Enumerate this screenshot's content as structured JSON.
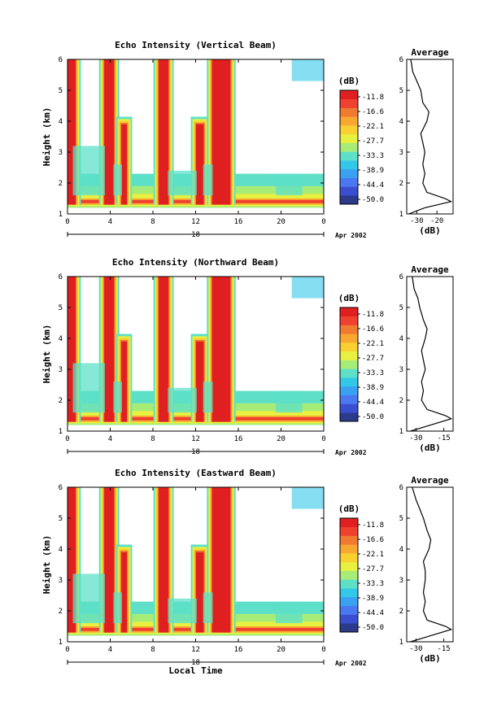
{
  "chart_data": [
    {
      "type": "heatmap",
      "title": "Echo Intensity (Vertical Beam)",
      "ylabel": "Height (km)",
      "xlabel": "",
      "xlim": [
        0,
        24
      ],
      "ylim": [
        1,
        6
      ],
      "x_ticks": [
        "0",
        "4",
        "8",
        "12",
        "16",
        "20",
        "0"
      ],
      "y_ticks": [
        "1",
        "2",
        "3",
        "4",
        "5",
        "6"
      ],
      "day_label": "18",
      "date_label": "Apr 2002",
      "colorbar": {
        "unit": "(dB)",
        "levels": [
          "-11.8",
          "-16.6",
          "-22.1",
          "-27.7",
          "-33.3",
          "-38.9",
          "-44.4",
          "-50.0"
        ],
        "colors": [
          "#2b3a8a",
          "#3a4fd0",
          "#4a78f0",
          "#3aa0f0",
          "#34c8e8",
          "#5ee0c8",
          "#a8ec78",
          "#e8f040",
          "#f8d030",
          "#f8a830",
          "#f07a30",
          "#f04030",
          "#e02020"
        ]
      },
      "echo_bands": [
        {
          "start": 0.0,
          "end": 0.7,
          "top": 6.0
        },
        {
          "start": 3.5,
          "end": 4.3,
          "top": 6.0
        },
        {
          "start": 5.1,
          "end": 5.5,
          "top": 3.9
        },
        {
          "start": 8.6,
          "end": 9.4,
          "top": 6.0
        },
        {
          "start": 12.1,
          "end": 12.7,
          "top": 3.9
        },
        {
          "start": 13.6,
          "end": 15.2,
          "top": 6.0
        }
      ],
      "average": {
        "title": "Average",
        "xlabel": "(dB)",
        "x_ticks": [
          "-30",
          "-20"
        ],
        "xlim": [
          -35,
          -12
        ],
        "height": [
          1.0,
          1.2,
          1.4,
          1.5,
          1.7,
          2.0,
          2.3,
          2.6,
          3.0,
          3.3,
          3.6,
          4.0,
          4.3,
          4.6,
          5.0,
          5.3,
          5.6,
          6.0
        ],
        "values": [
          -34,
          -26,
          -13,
          -16,
          -25,
          -27,
          -26,
          -27,
          -26,
          -27,
          -28,
          -25,
          -24,
          -27,
          -28,
          -30,
          -32,
          -33
        ]
      }
    },
    {
      "type": "heatmap",
      "title": "Echo Intensity (Northward Beam)",
      "ylabel": "Height (km)",
      "xlabel": "",
      "xlim": [
        0,
        24
      ],
      "ylim": [
        1,
        6
      ],
      "x_ticks": [
        "0",
        "4",
        "8",
        "12",
        "16",
        "20",
        "0"
      ],
      "y_ticks": [
        "1",
        "2",
        "3",
        "4",
        "5",
        "6"
      ],
      "day_label": "18",
      "date_label": "Apr 2002",
      "colorbar": {
        "unit": "(dB)",
        "levels": [
          "-11.8",
          "-16.6",
          "-22.1",
          "-27.7",
          "-33.3",
          "-38.9",
          "-44.4",
          "-50.0"
        ],
        "colors": [
          "#2b3a8a",
          "#3a4fd0",
          "#4a78f0",
          "#3aa0f0",
          "#34c8e8",
          "#5ee0c8",
          "#a8ec78",
          "#e8f040",
          "#f8d030",
          "#f8a830",
          "#f07a30",
          "#f04030",
          "#e02020"
        ]
      },
      "echo_bands": [
        {
          "start": 0.0,
          "end": 0.7,
          "top": 6.0
        },
        {
          "start": 3.5,
          "end": 4.3,
          "top": 6.0
        },
        {
          "start": 5.1,
          "end": 5.5,
          "top": 3.9
        },
        {
          "start": 8.6,
          "end": 9.4,
          "top": 6.0
        },
        {
          "start": 12.1,
          "end": 12.7,
          "top": 3.9
        },
        {
          "start": 13.6,
          "end": 15.2,
          "top": 6.0
        }
      ],
      "average": {
        "title": "Average",
        "xlabel": "(dB)",
        "x_ticks": [
          "-30",
          "-15"
        ],
        "xlim": [
          -35,
          -10
        ],
        "height": [
          1.0,
          1.2,
          1.4,
          1.5,
          1.7,
          2.0,
          2.3,
          2.6,
          3.0,
          3.3,
          3.6,
          4.0,
          4.3,
          4.6,
          5.0,
          5.3,
          5.6,
          6.0
        ],
        "values": [
          -33,
          -22,
          -11,
          -14,
          -24,
          -27,
          -26,
          -27,
          -25,
          -26,
          -27,
          -25,
          -24,
          -26,
          -28,
          -29,
          -31,
          -32
        ]
      }
    },
    {
      "type": "heatmap",
      "title": "Echo Intensity (Eastward Beam)",
      "ylabel": "Height (km)",
      "xlabel": "Local Time",
      "xlim": [
        0,
        24
      ],
      "ylim": [
        1,
        6
      ],
      "x_ticks": [
        "0",
        "4",
        "8",
        "12",
        "16",
        "20",
        "0"
      ],
      "y_ticks": [
        "1",
        "2",
        "3",
        "4",
        "5",
        "6"
      ],
      "day_label": "18",
      "date_label": "Apr 2002",
      "colorbar": {
        "unit": "(dB)",
        "levels": [
          "-11.8",
          "-16.6",
          "-22.1",
          "-27.7",
          "-33.3",
          "-38.9",
          "-44.4",
          "-50.0"
        ],
        "colors": [
          "#2b3a8a",
          "#3a4fd0",
          "#4a78f0",
          "#3aa0f0",
          "#34c8e8",
          "#5ee0c8",
          "#a8ec78",
          "#e8f040",
          "#f8d030",
          "#f8a830",
          "#f07a30",
          "#f04030",
          "#e02020"
        ]
      },
      "echo_bands": [
        {
          "start": 0.0,
          "end": 0.7,
          "top": 6.0
        },
        {
          "start": 3.5,
          "end": 4.3,
          "top": 6.0
        },
        {
          "start": 5.1,
          "end": 5.5,
          "top": 3.9
        },
        {
          "start": 8.6,
          "end": 9.4,
          "top": 6.0
        },
        {
          "start": 12.1,
          "end": 12.7,
          "top": 3.9
        },
        {
          "start": 13.6,
          "end": 15.2,
          "top": 6.0
        }
      ],
      "average": {
        "title": "Average",
        "xlabel": "(dB)",
        "x_ticks": [
          "-30",
          "-15"
        ],
        "xlim": [
          -35,
          -10
        ],
        "height": [
          1.0,
          1.2,
          1.4,
          1.5,
          1.7,
          2.0,
          2.3,
          2.6,
          3.0,
          3.3,
          3.6,
          4.0,
          4.3,
          4.6,
          5.0,
          5.3,
          5.6,
          6.0
        ],
        "values": [
          -33,
          -22,
          -11,
          -14,
          -24,
          -26,
          -25,
          -26,
          -25,
          -25,
          -26,
          -23,
          -22,
          -24,
          -26,
          -28,
          -30,
          -32
        ]
      }
    }
  ]
}
